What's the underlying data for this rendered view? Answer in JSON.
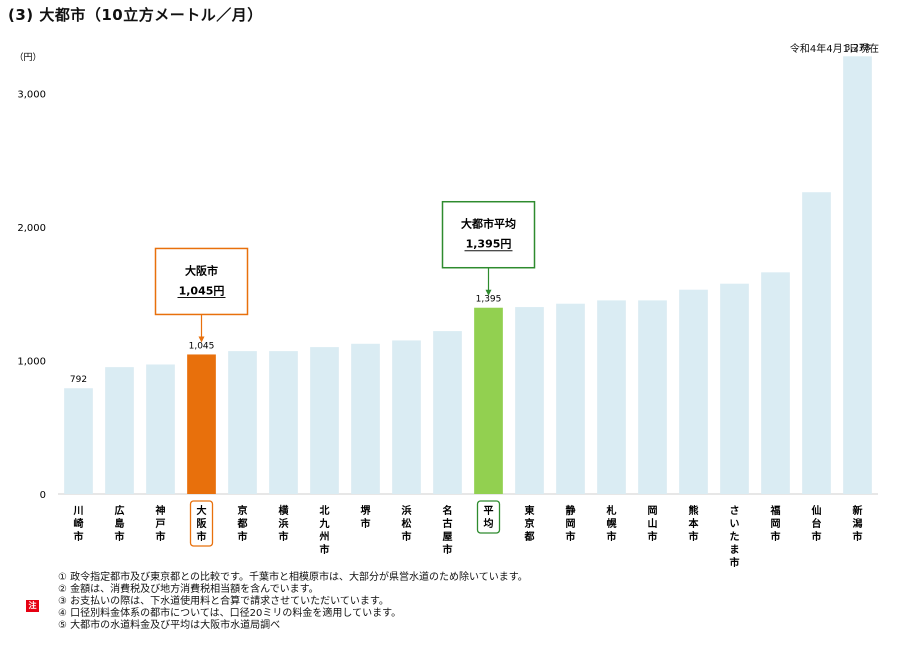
{
  "page_title": "(3) 大都市（10立方メートル／月）",
  "as_of": "令和4年4月1日現在",
  "colors": {
    "bar_default": "#daecf3",
    "bar_osaka": "#e8700c",
    "bar_average": "#92d050",
    "callout_osaka": "#e8700c",
    "callout_average": "#2e8b2e",
    "note_badge": "#e60012"
  },
  "note_badge": "注",
  "chart_data": {
    "type": "bar",
    "ylabel": "（円）",
    "ylim": [
      0,
      3400
    ],
    "yticks": [
      0,
      1000,
      2000,
      3000
    ],
    "ytick_labels": [
      "0",
      "1,000",
      "2,000",
      "3,000"
    ],
    "grid": false,
    "categories": [
      "川崎市",
      "広島市",
      "神戸市",
      "大阪市",
      "京都市",
      "横浜市",
      "北九州市",
      "堺市",
      "浜松市",
      "名古屋市",
      "平均",
      "東京都",
      "静岡市",
      "札幌市",
      "岡山市",
      "熊本市",
      "さいたま市",
      "福岡市",
      "仙台市",
      "新潟市"
    ],
    "values": [
      792,
      950,
      970,
      1045,
      1070,
      1070,
      1100,
      1125,
      1150,
      1220,
      1395,
      1400,
      1425,
      1450,
      1450,
      1530,
      1575,
      1660,
      2260,
      3278
    ],
    "highlight": {
      "osaka_index": 3,
      "average_index": 10
    },
    "value_labels": [
      {
        "index": 0,
        "text": "792"
      },
      {
        "index": 3,
        "text": "1,045"
      },
      {
        "index": 10,
        "text": "1,395"
      },
      {
        "index": 19,
        "text": "3,278"
      }
    ],
    "callouts": [
      {
        "index": 3,
        "title": "大阪市",
        "value": "1,045円",
        "color": "#e8700c"
      },
      {
        "index": 10,
        "title": "大都市平均",
        "value": "1,395円",
        "color": "#2e8b2e"
      }
    ]
  },
  "notes": [
    "① 政令指定都市及び東京都との比較です。千葉市と相模原市は、大部分が県営水道のため除いています。",
    "② 金額は、消費税及び地方消費税相当額を含んでいます。",
    "③ お支払いの際は、下水道使用料と合算で請求させていただいています。",
    "④ 口径別料金体系の都市については、口径20ミリの料金を適用しています。",
    "⑤ 大都市の水道料金及び平均は大阪市水道局調べ"
  ]
}
